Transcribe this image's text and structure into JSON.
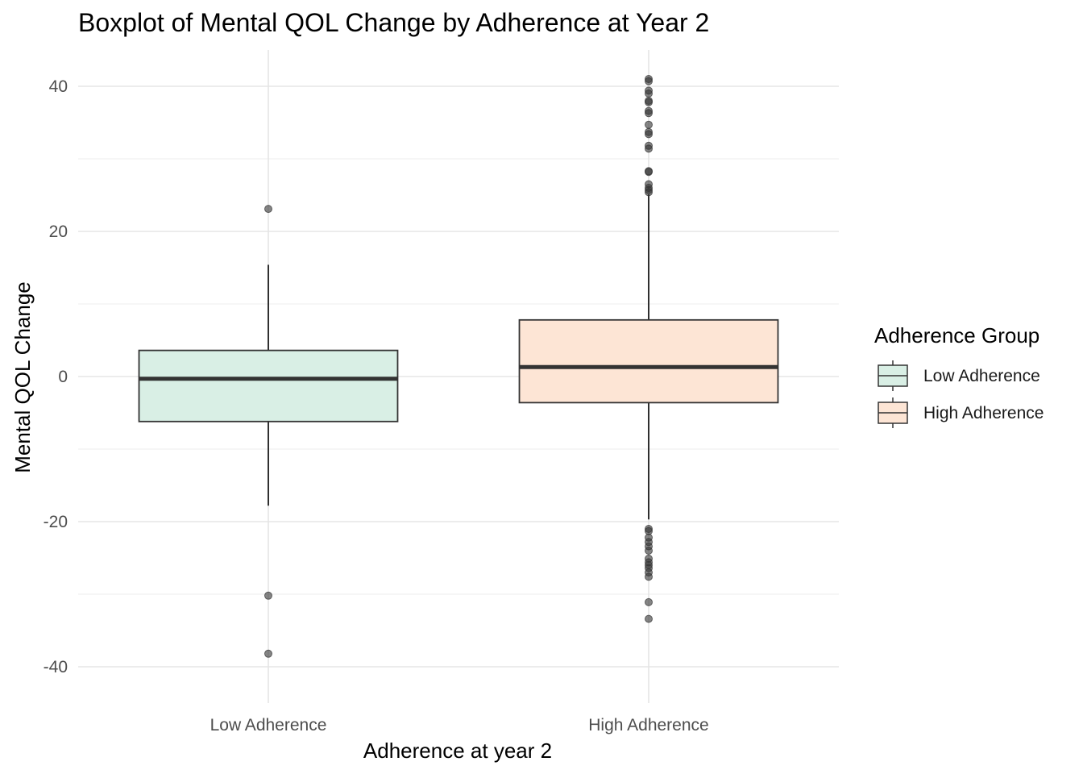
{
  "chart_data": {
    "type": "boxplot",
    "title": "Boxplot of Mental QOL Change by Adherence at Year 2",
    "xlabel": "Adherence at year 2",
    "ylabel": "Mental QOL Change",
    "ylim": [
      -45,
      45
    ],
    "yticks": [
      -40,
      -20,
      0,
      20,
      40
    ],
    "grid": true,
    "legend": {
      "title": "Adherence Group",
      "position": "right",
      "entries": [
        "Low Adherence",
        "High Adherence"
      ]
    },
    "categories": [
      "Low Adherence",
      "High Adherence"
    ],
    "boxes": [
      {
        "name": "Low Adherence",
        "color": "#d9efe5",
        "whisker_low": -17.8,
        "q1": -6.2,
        "median": -0.3,
        "q3": 3.6,
        "whisker_high": 15.4,
        "outliers": [
          23.1,
          -30.2,
          -38.2
        ]
      },
      {
        "name": "High Adherence",
        "color": "#fde5d5",
        "whisker_low": -19.7,
        "q1": -3.6,
        "median": 1.3,
        "q3": 7.8,
        "whisker_high": 25.1,
        "outliers": [
          41.0,
          40.7,
          39.4,
          39.0,
          38.0,
          37.8,
          36.6,
          36.3,
          34.7,
          33.7,
          33.4,
          31.8,
          31.4,
          28.3,
          28.2,
          26.5,
          26.0,
          25.7,
          25.4,
          -21.0,
          -21.3,
          -22.2,
          -22.8,
          -23.4,
          -24.0,
          -25.1,
          -25.6,
          -26.0,
          -26.4,
          -27.0,
          -27.6,
          -31.1,
          -33.4
        ]
      }
    ]
  }
}
